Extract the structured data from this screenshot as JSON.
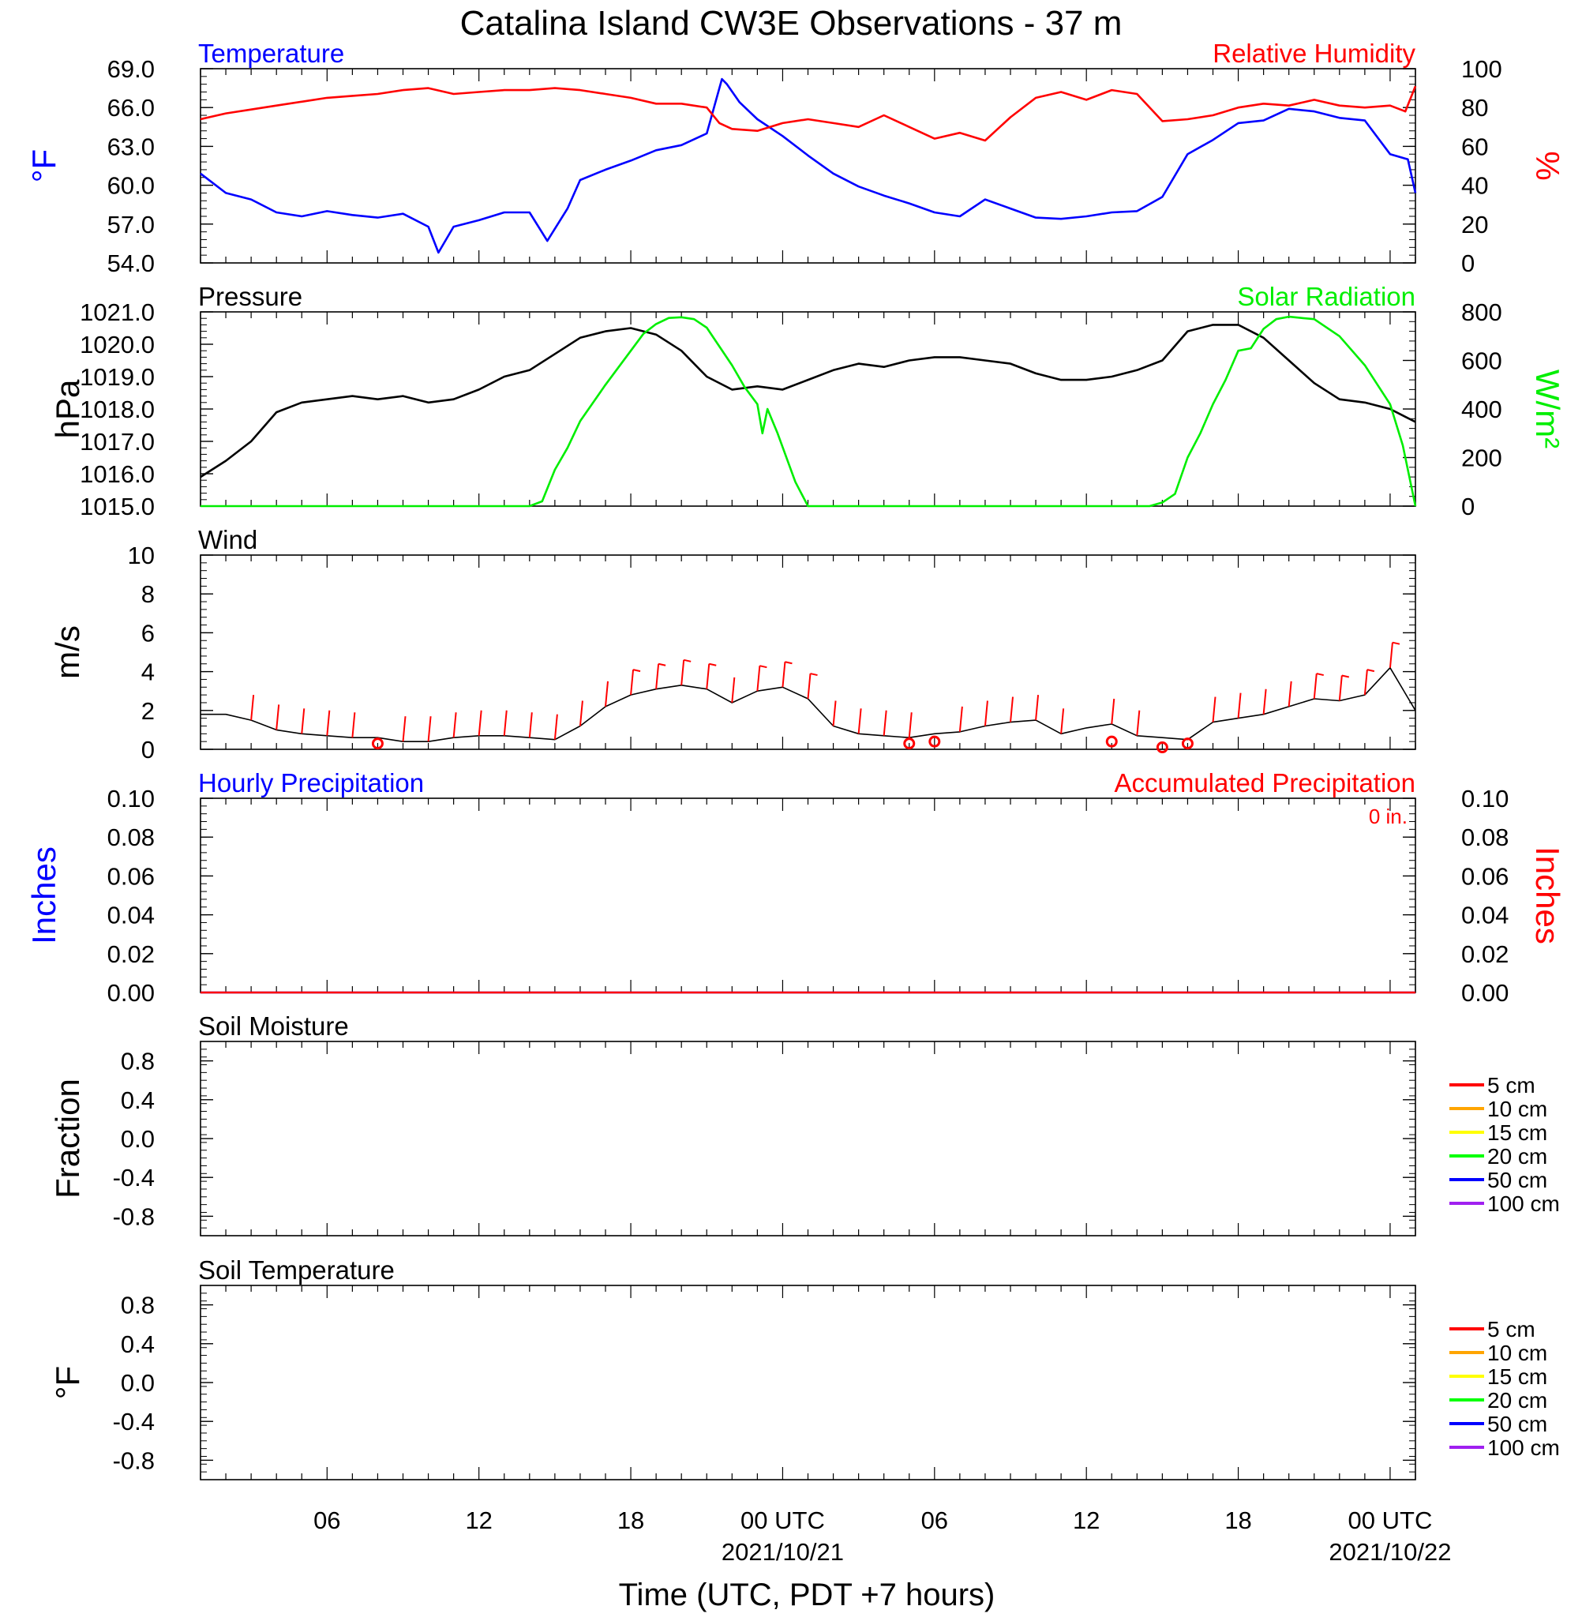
{
  "title": "Catalina Island CW3E Observations - 37 m",
  "xlabel": "Time (UTC, PDT +7 hours)",
  "x_ticks": [
    {
      "h": 6,
      "label": "06",
      "date": ""
    },
    {
      "h": 12,
      "label": "12",
      "date": ""
    },
    {
      "h": 18,
      "label": "18",
      "date": ""
    },
    {
      "h": 24,
      "label": "00 UTC",
      "date": "2021/10/21"
    },
    {
      "h": 30,
      "label": "06",
      "date": ""
    },
    {
      "h": 36,
      "label": "12",
      "date": ""
    },
    {
      "h": 42,
      "label": "18",
      "date": ""
    },
    {
      "h": 48,
      "label": "00 UTC",
      "date": "2021/10/22"
    }
  ],
  "colors": {
    "temperature": "#0000ff",
    "humidity": "#ff0000",
    "pressure": "#000000",
    "solar": "#00ee00",
    "wind": "#000000",
    "barb": "#ff0000"
  },
  "chart_data": [
    {
      "id": "temp_rh",
      "type": "line",
      "title_left": "Temperature",
      "title_right": "Relative Humidity",
      "ylabel_left": "°F",
      "ylabel_right": "%",
      "ylim_left": [
        54,
        69
      ],
      "ylim_right": [
        0,
        100
      ],
      "yticks_left": [
        "54.0",
        "57.0",
        "60.0",
        "63.0",
        "66.0",
        "69.0"
      ],
      "yticks_right": [
        "0",
        "20",
        "40",
        "60",
        "80",
        "100"
      ],
      "xlim": [
        1,
        49
      ],
      "grid": false,
      "series": [
        {
          "name": "Temperature",
          "axis": "left",
          "color": "#0000ff",
          "x": [
            1,
            2,
            3,
            4,
            5,
            6,
            7,
            8,
            9,
            10,
            10.4,
            11,
            12,
            13,
            14,
            14.7,
            15.5,
            16,
            17,
            18,
            19,
            20,
            21,
            21.6,
            21.8,
            22.3,
            23,
            24,
            25,
            26,
            27,
            28,
            29,
            30,
            31,
            32,
            33,
            34,
            35,
            36,
            37,
            38,
            39,
            40,
            41,
            42,
            43,
            44,
            45,
            46,
            47,
            48,
            48.7,
            49
          ],
          "y": [
            60.9,
            59.4,
            58.9,
            57.9,
            57.6,
            58.0,
            57.7,
            57.5,
            57.8,
            56.8,
            54.8,
            56.8,
            57.3,
            57.9,
            57.9,
            55.7,
            58.2,
            60.4,
            61.2,
            61.9,
            62.7,
            63.1,
            64.0,
            68.2,
            67.8,
            66.4,
            65.1,
            63.8,
            62.3,
            60.9,
            59.9,
            59.2,
            58.6,
            57.9,
            57.6,
            58.9,
            58.2,
            57.5,
            57.4,
            57.6,
            57.9,
            58.0,
            59.1,
            62.4,
            63.5,
            64.8,
            65.0,
            65.9,
            65.7,
            65.2,
            65.0,
            62.4,
            62.0,
            59.4
          ]
        },
        {
          "name": "Relative Humidity",
          "axis": "right",
          "color": "#ff0000",
          "x": [
            1,
            2,
            3,
            4,
            5,
            6,
            7,
            8,
            9,
            10,
            11,
            12,
            13,
            14,
            15,
            16,
            17,
            18,
            19,
            20,
            21,
            21.5,
            22,
            23,
            24,
            25,
            26,
            27,
            28,
            29,
            30,
            31,
            32,
            33,
            34,
            35,
            36,
            37,
            38,
            39,
            40,
            41,
            42,
            43,
            44,
            45,
            46,
            47,
            48,
            48.6,
            49
          ],
          "y": [
            74,
            77,
            79,
            81,
            83,
            85,
            86,
            87,
            89,
            90,
            87,
            88,
            89,
            89,
            90,
            89,
            87,
            85,
            82,
            82,
            80,
            72,
            69,
            68,
            72,
            74,
            72,
            70,
            76,
            70,
            64,
            67,
            63,
            75,
            85,
            88,
            84,
            89,
            87,
            73,
            74,
            76,
            80,
            82,
            81,
            84,
            81,
            80,
            81,
            78,
            91
          ]
        }
      ]
    },
    {
      "id": "pressure_solar",
      "type": "line",
      "title_left": "Pressure",
      "title_right": "Solar Radiation",
      "ylabel_left": "hPa",
      "ylabel_right": "W/m²",
      "ylim_left": [
        1015,
        1021
      ],
      "ylim_right": [
        0,
        800
      ],
      "yticks_left": [
        "1015.0",
        "1016.0",
        "1017.0",
        "1018.0",
        "1019.0",
        "1020.0",
        "1021.0"
      ],
      "yticks_right": [
        "0",
        "200",
        "400",
        "600",
        "800"
      ],
      "xlim": [
        1,
        49
      ],
      "grid": false,
      "series": [
        {
          "name": "Pressure",
          "axis": "left",
          "color": "#000000",
          "x": [
            1,
            2,
            3,
            4,
            5,
            6,
            7,
            8,
            9,
            10,
            11,
            12,
            13,
            14,
            15,
            16,
            17,
            18,
            19,
            20,
            21,
            22,
            23,
            24,
            25,
            26,
            27,
            28,
            29,
            30,
            31,
            32,
            33,
            34,
            35,
            36,
            37,
            38,
            39,
            40,
            41,
            42,
            43,
            44,
            45,
            46,
            47,
            48,
            49
          ],
          "y": [
            1015.9,
            1016.4,
            1017.0,
            1017.9,
            1018.2,
            1018.3,
            1018.4,
            1018.3,
            1018.4,
            1018.2,
            1018.3,
            1018.6,
            1019.0,
            1019.2,
            1019.7,
            1020.2,
            1020.4,
            1020.5,
            1020.3,
            1019.8,
            1019.0,
            1018.6,
            1018.7,
            1018.6,
            1018.9,
            1019.2,
            1019.4,
            1019.3,
            1019.5,
            1019.6,
            1019.6,
            1019.5,
            1019.4,
            1019.1,
            1018.9,
            1018.9,
            1019.0,
            1019.2,
            1019.5,
            1020.4,
            1020.6,
            1020.6,
            1020.2,
            1019.5,
            1018.8,
            1018.3,
            1018.2,
            1018.0,
            1017.6
          ]
        },
        {
          "name": "Solar Radiation",
          "axis": "right",
          "color": "#00ee00",
          "x": [
            1,
            14,
            14.5,
            15,
            15.5,
            16,
            17,
            18,
            18.5,
            19,
            19.5,
            20,
            20.5,
            21,
            22,
            22.5,
            23,
            23.2,
            23.4,
            23.8,
            24.5,
            25,
            38.5,
            39,
            39.5,
            40,
            40.5,
            41,
            41.5,
            42,
            42.5,
            43,
            43.5,
            44,
            44.5,
            45,
            46,
            47,
            48,
            48.5,
            49
          ],
          "y": [
            0,
            0,
            20,
            150,
            240,
            350,
            500,
            640,
            710,
            750,
            775,
            778,
            770,
            735,
            580,
            490,
            420,
            300,
            400,
            300,
            100,
            0,
            0,
            15,
            50,
            200,
            300,
            420,
            520,
            640,
            650,
            730,
            770,
            780,
            775,
            770,
            700,
            580,
            420,
            250,
            0
          ]
        }
      ]
    },
    {
      "id": "wind",
      "type": "line",
      "title_left": "Wind",
      "ylabel_left": "m/s",
      "ylim_left": [
        0,
        10
      ],
      "yticks_left": [
        "0",
        "2",
        "4",
        "6",
        "8",
        "10"
      ],
      "xlim": [
        1,
        49
      ],
      "grid": false,
      "series": [
        {
          "name": "Wind",
          "axis": "left",
          "color": "#000000",
          "x": [
            1,
            2,
            3,
            4,
            5,
            6,
            7,
            8,
            9,
            10,
            11,
            12,
            13,
            14,
            15,
            16,
            17,
            18,
            19,
            20,
            21,
            22,
            23,
            24,
            25,
            26,
            27,
            28,
            29,
            30,
            31,
            32,
            33,
            34,
            35,
            36,
            37,
            38,
            39,
            40,
            41,
            42,
            43,
            44,
            45,
            46,
            47,
            48,
            49
          ],
          "y": [
            1.8,
            1.8,
            1.5,
            1.0,
            0.8,
            0.7,
            0.6,
            0.6,
            0.4,
            0.4,
            0.6,
            0.7,
            0.7,
            0.6,
            0.5,
            1.2,
            2.2,
            2.8,
            3.1,
            3.3,
            3.1,
            2.4,
            3.0,
            3.2,
            2.6,
            1.2,
            0.8,
            0.7,
            0.6,
            0.8,
            0.9,
            1.2,
            1.4,
            1.5,
            0.8,
            1.1,
            1.3,
            0.7,
            0.6,
            0.5,
            1.4,
            1.6,
            1.8,
            2.2,
            2.6,
            2.5,
            2.8,
            4.2,
            2.0
          ]
        },
        {
          "name": "Wind barbs",
          "axis": "left",
          "color": "#ff0000",
          "x": [
            3,
            4,
            5,
            6,
            7,
            9,
            10,
            11,
            12,
            13,
            14,
            15,
            16,
            17,
            18,
            19,
            20,
            21,
            22,
            23,
            24,
            25,
            26,
            27,
            28,
            29,
            31,
            32,
            33,
            34,
            35,
            37,
            38,
            41,
            42,
            43,
            44,
            45,
            46,
            47,
            48
          ],
          "y": [
            1.5,
            1.0,
            0.8,
            0.7,
            0.6,
            0.4,
            0.4,
            0.6,
            0.7,
            0.7,
            0.6,
            0.5,
            1.2,
            2.2,
            2.8,
            3.1,
            3.3,
            3.1,
            2.4,
            3.0,
            3.2,
            2.6,
            1.2,
            0.8,
            0.7,
            0.6,
            0.9,
            1.2,
            1.4,
            1.5,
            0.8,
            1.3,
            0.7,
            1.4,
            1.6,
            1.8,
            2.2,
            2.6,
            2.5,
            2.8,
            4.2
          ]
        },
        {
          "name": "Calm",
          "axis": "left",
          "color": "#ff0000",
          "x": [
            8,
            29,
            30,
            37,
            39,
            40
          ],
          "y": [
            0.3,
            0.3,
            0.4,
            0.4,
            0.1,
            0.3
          ]
        }
      ]
    },
    {
      "id": "precip",
      "type": "line",
      "title_left": "Hourly Precipitation",
      "title_right": "Accumulated Precipitation",
      "annotation": "0 in.",
      "ylabel_left": "Inches",
      "ylabel_right": "Inches",
      "ylim_left": [
        0,
        0.1
      ],
      "ylim_right": [
        0,
        0.1
      ],
      "yticks_left": [
        "0.00",
        "0.02",
        "0.04",
        "0.06",
        "0.08",
        "0.10"
      ],
      "yticks_right": [
        "0.00",
        "0.02",
        "0.04",
        "0.06",
        "0.08",
        "0.10"
      ],
      "xlim": [
        1,
        49
      ],
      "grid": false,
      "series": [
        {
          "name": "Hourly Precipitation",
          "axis": "left",
          "color": "#0000ff",
          "x": [
            1,
            49
          ],
          "y": [
            0,
            0
          ]
        },
        {
          "name": "Accumulated Precipitation",
          "axis": "right",
          "color": "#ff0000",
          "x": [
            1,
            49
          ],
          "y": [
            0,
            0
          ]
        }
      ]
    },
    {
      "id": "soil_moisture",
      "type": "line",
      "title_left": "Soil Moisture",
      "ylabel_left": "Fraction",
      "ylim_left": [
        -1,
        1
      ],
      "yticks_left": [
        "-0.8",
        "-0.4",
        "0.0",
        "0.4",
        "0.8"
      ],
      "ytick_values": [
        -0.8,
        -0.4,
        0,
        0.4,
        0.8
      ],
      "xlim": [
        1,
        49
      ],
      "grid": false,
      "legend": [
        {
          "label": "5 cm",
          "color": "#ff0000"
        },
        {
          "label": "10 cm",
          "color": "#ffa500"
        },
        {
          "label": "15 cm",
          "color": "#ffff00"
        },
        {
          "label": "20 cm",
          "color": "#00ff00"
        },
        {
          "label": "50 cm",
          "color": "#0000ff"
        },
        {
          "label": "100 cm",
          "color": "#a020f0"
        }
      ]
    },
    {
      "id": "soil_temperature",
      "type": "line",
      "title_left": "Soil Temperature",
      "ylabel_left": "°F",
      "ylim_left": [
        -1,
        1
      ],
      "yticks_left": [
        "-0.8",
        "-0.4",
        "0.0",
        "0.4",
        "0.8"
      ],
      "ytick_values": [
        -0.8,
        -0.4,
        0,
        0.4,
        0.8
      ],
      "xlim": [
        1,
        49
      ],
      "grid": false,
      "legend": [
        {
          "label": "5 cm",
          "color": "#ff0000"
        },
        {
          "label": "10 cm",
          "color": "#ffa500"
        },
        {
          "label": "15 cm",
          "color": "#ffff00"
        },
        {
          "label": "20 cm",
          "color": "#00ff00"
        },
        {
          "label": "50 cm",
          "color": "#0000ff"
        },
        {
          "label": "100 cm",
          "color": "#a020f0"
        }
      ]
    }
  ]
}
